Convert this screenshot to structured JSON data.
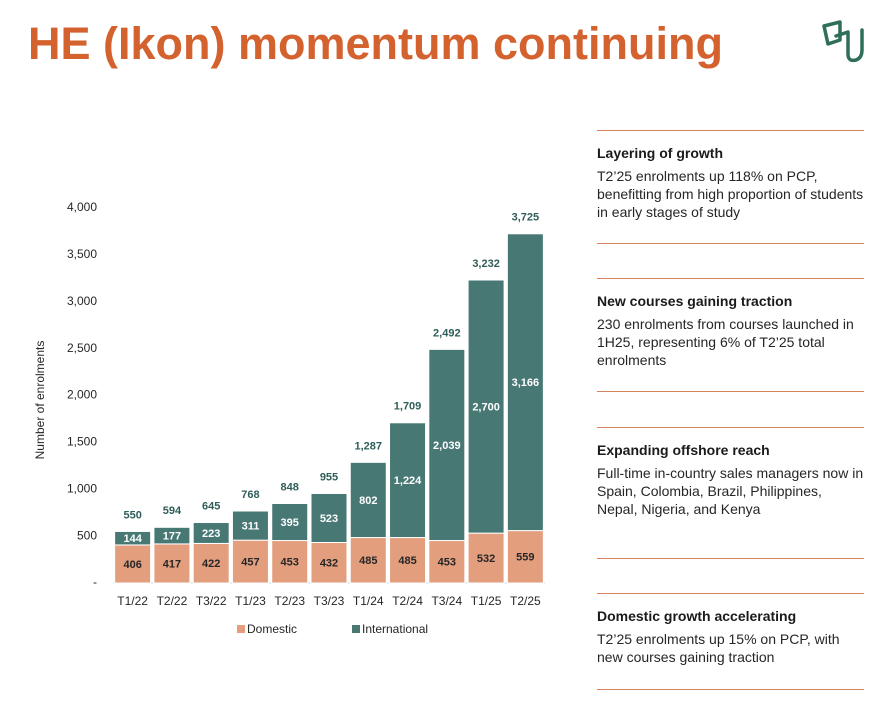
{
  "title": "HE (Ikon) momentum continuing",
  "chart_data": {
    "type": "stacked-bar",
    "y_label": "Number of enrolments",
    "categories": [
      "T1/22",
      "T2/22",
      "T3/22",
      "T1/23",
      "T2/23",
      "T3/23",
      "T1/24",
      "T2/24",
      "T3/24",
      "T1/25",
      "T2/25"
    ],
    "series": [
      {
        "name": "Domestic",
        "color": "#e39e7e",
        "label_color": "#262626",
        "values": [
          406,
          417,
          422,
          457,
          453,
          432,
          485,
          485,
          453,
          532,
          559
        ]
      },
      {
        "name": "International",
        "color": "#477873",
        "label_color": "#ffffff",
        "values": [
          144,
          177,
          223,
          311,
          395,
          523,
          802,
          1224,
          2039,
          2700,
          3166
        ],
        "value_labels": [
          "144",
          "177",
          "223",
          "311",
          "395",
          "523",
          "802",
          "1,224",
          "2,039",
          "2,700",
          "3,166"
        ]
      }
    ],
    "totals": [
      550,
      594,
      645,
      768,
      848,
      955,
      1287,
      1709,
      2492,
      3232,
      3725
    ],
    "total_labels": [
      "550",
      "594",
      "645",
      "768",
      "848",
      "955",
      "1,287",
      "1,709",
      "2,492",
      "3,232",
      "3,725"
    ],
    "ylim": [
      0,
      4000
    ],
    "yticks": [
      {
        "value": 0,
        "label": "-"
      },
      500,
      {
        "value": 1000,
        "label": "1,000"
      },
      {
        "value": 1500,
        "label": "1,500"
      },
      {
        "value": 2000,
        "label": "2,000"
      },
      {
        "value": 2500,
        "label": "2,500"
      },
      {
        "value": 3000,
        "label": "3,000"
      },
      {
        "value": 3500,
        "label": "3,500"
      },
      {
        "value": 4000,
        "label": "4,000"
      }
    ],
    "legend": "bottom"
  },
  "panels": [
    {
      "heading": "Layering of growth",
      "body": "T2’25 enrolments up 118% on PCP, benefitting from high proportion of students in early stages of study"
    },
    {
      "heading": "New courses gaining traction",
      "body": "230 enrolments from courses launched in 1H25, representing 6% of T2’25 total enrolments"
    },
    {
      "heading": "Expanding offshore reach",
      "body": "Full-time in-country sales managers now in Spain, Colombia, Brazil, Philippines, Nepal, Nigeria, and Kenya"
    },
    {
      "heading": "Domestic growth accelerating",
      "body": "T2’25 enrolments up 15% on PCP, with new courses gaining traction"
    }
  ]
}
